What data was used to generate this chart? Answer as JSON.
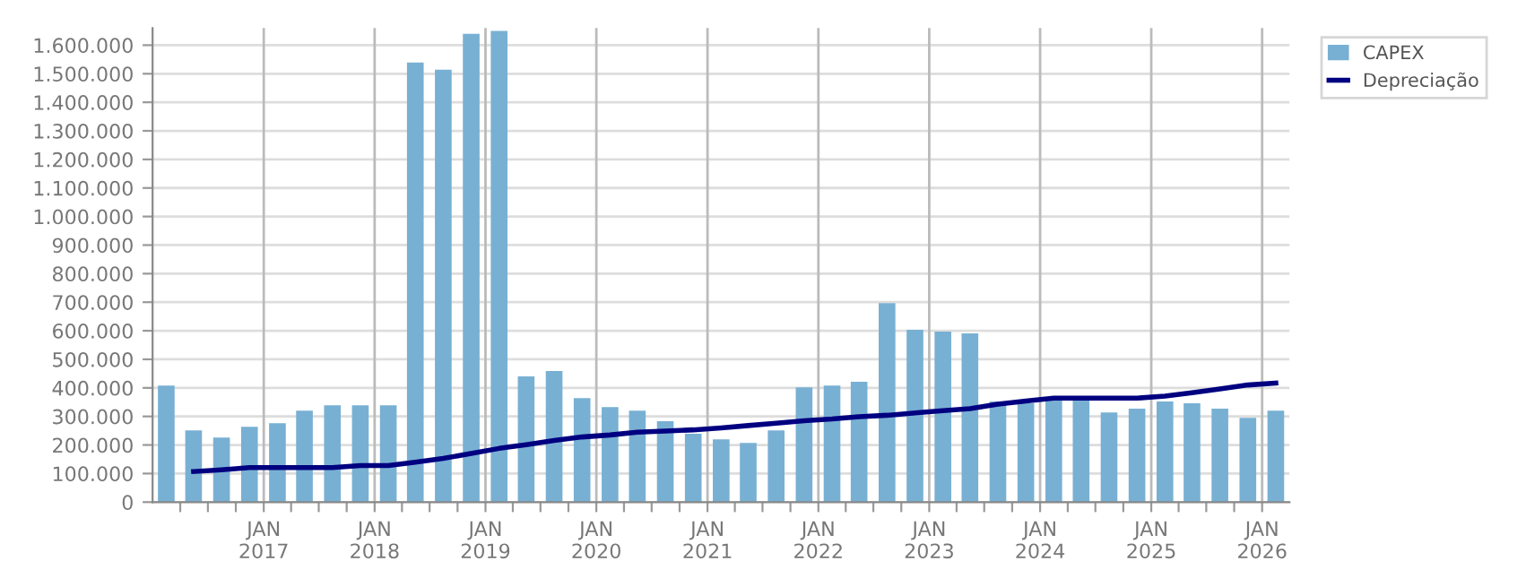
{
  "chart_data": {
    "type": "bar",
    "x": [
      "2016-02-15",
      "2016-05-15",
      "2016-08-15",
      "2016-11-15",
      "2017-02-15",
      "2017-05-15",
      "2017-08-15",
      "2017-11-15",
      "2018-02-15",
      "2018-05-15",
      "2018-08-15",
      "2018-11-15",
      "2019-02-15",
      "2019-05-15",
      "2019-08-15",
      "2019-11-15",
      "2020-02-15",
      "2020-05-15",
      "2020-08-15",
      "2020-11-15",
      "2021-02-15",
      "2021-05-15",
      "2021-08-15",
      "2021-11-15",
      "2022-02-15",
      "2022-05-15",
      "2022-08-15",
      "2022-11-15",
      "2023-02-15",
      "2023-05-15",
      "2023-08-15",
      "2023-11-15",
      "2024-02-15",
      "2024-05-15",
      "2024-08-15",
      "2024-11-15",
      "2025-02-15",
      "2025-05-15",
      "2025-08-15",
      "2025-11-15",
      "2026-02-15"
    ],
    "series": [
      {
        "name": "CAPEX",
        "color": "#78b0d3",
        "values": [
          408000,
          251000,
          226000,
          264000,
          276000,
          320000,
          339000,
          339000,
          339000,
          1539000,
          1514000,
          1640000,
          1650000,
          440000,
          459000,
          364000,
          333000,
          320000,
          283000,
          239000,
          220000,
          207000,
          251000,
          402000,
          408000,
          421000,
          697000,
          603000,
          597000,
          591000,
          352000,
          346000,
          364000,
          364000,
          314000,
          327000,
          352000,
          346000,
          327000,
          295000,
          320000
        ]
      },
      {
        "name": "Depreciação",
        "type": "line",
        "color": "#000080",
        "values": [
          null,
          107000,
          113000,
          121000,
          121000,
          121000,
          121000,
          128000,
          128000,
          140000,
          153000,
          170000,
          188000,
          201000,
          216000,
          228000,
          235000,
          245000,
          249000,
          253000,
          260000,
          268000,
          276000,
          285000,
          291000,
          299000,
          304000,
          312000,
          320000,
          327000,
          343000,
          354000,
          364000,
          364000,
          364000,
          364000,
          371000,
          383000,
          396000,
          410000,
          417000
        ]
      }
    ],
    "xlim": [
      "2016-01-01",
      "2026-04-01"
    ],
    "xticks": [
      {
        "value": "2016-04-01",
        "label": null
      },
      {
        "value": "2016-07-01",
        "label": null
      },
      {
        "value": "2016-10-01",
        "label": null
      },
      {
        "value": "2017-01-01",
        "label": "JAN\n2017"
      },
      {
        "value": "2017-04-01",
        "label": null
      },
      {
        "value": "2017-07-01",
        "label": null
      },
      {
        "value": "2017-10-01",
        "label": null
      },
      {
        "value": "2018-01-01",
        "label": "JAN\n2018"
      },
      {
        "value": "2018-04-01",
        "label": null
      },
      {
        "value": "2018-07-01",
        "label": null
      },
      {
        "value": "2018-10-01",
        "label": null
      },
      {
        "value": "2019-01-01",
        "label": "JAN\n2019"
      },
      {
        "value": "2019-04-01",
        "label": null
      },
      {
        "value": "2019-07-01",
        "label": null
      },
      {
        "value": "2019-10-01",
        "label": null
      },
      {
        "value": "2020-01-01",
        "label": "JAN\n2020"
      },
      {
        "value": "2020-04-01",
        "label": null
      },
      {
        "value": "2020-07-01",
        "label": null
      },
      {
        "value": "2020-10-01",
        "label": null
      },
      {
        "value": "2021-01-01",
        "label": "JAN\n2021"
      },
      {
        "value": "2021-04-01",
        "label": null
      },
      {
        "value": "2021-07-01",
        "label": null
      },
      {
        "value": "2021-10-01",
        "label": null
      },
      {
        "value": "2022-01-01",
        "label": "JAN\n2022"
      },
      {
        "value": "2022-04-01",
        "label": null
      },
      {
        "value": "2022-07-01",
        "label": null
      },
      {
        "value": "2022-10-01",
        "label": null
      },
      {
        "value": "2023-01-01",
        "label": "JAN\n2023"
      },
      {
        "value": "2023-04-01",
        "label": null
      },
      {
        "value": "2023-07-01",
        "label": null
      },
      {
        "value": "2023-10-01",
        "label": null
      },
      {
        "value": "2024-01-01",
        "label": "JAN\n2024"
      },
      {
        "value": "2024-04-01",
        "label": null
      },
      {
        "value": "2024-07-01",
        "label": null
      },
      {
        "value": "2024-10-01",
        "label": null
      },
      {
        "value": "2025-01-01",
        "label": "JAN\n2025"
      },
      {
        "value": "2025-04-01",
        "label": null
      },
      {
        "value": "2025-07-01",
        "label": null
      },
      {
        "value": "2025-10-01",
        "label": null
      },
      {
        "value": "2026-01-01",
        "label": "JAN\n2026"
      }
    ],
    "ylim": [
      0,
      1660000
    ],
    "yticks": [
      0,
      {
        "value": 100000,
        "label": "100.000"
      },
      {
        "value": 200000,
        "label": "200.000"
      },
      {
        "value": 300000,
        "label": "300.000"
      },
      {
        "value": 400000,
        "label": "400.000"
      },
      {
        "value": 500000,
        "label": "500.000"
      },
      {
        "value": 600000,
        "label": "600.000"
      },
      {
        "value": 700000,
        "label": "700.000"
      },
      {
        "value": 800000,
        "label": "800.000"
      },
      {
        "value": 900000,
        "label": "900.000"
      },
      {
        "value": 1000000,
        "label": "1.000.000"
      },
      {
        "value": 1100000,
        "label": "1.100.000"
      },
      {
        "value": 1200000,
        "label": "1.200.000"
      },
      {
        "value": 1300000,
        "label": "1.300.000"
      },
      {
        "value": 1400000,
        "label": "1.400.000"
      },
      {
        "value": 1500000,
        "label": "1.500.000"
      },
      {
        "value": 1600000,
        "label": "1.600.000"
      }
    ],
    "grid": true,
    "legend": "right",
    "marker": "none",
    "line_style": "solid"
  }
}
